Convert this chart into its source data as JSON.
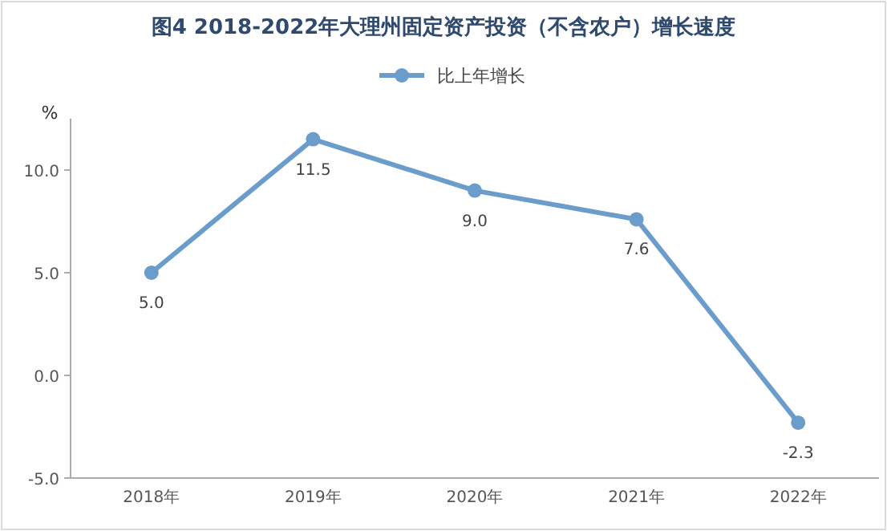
{
  "chart_data": {
    "type": "line",
    "title": "图4 2018-2022年大理州固定资产投资（不含农户）增长速度",
    "ylabel": "%",
    "categories": [
      "2018年",
      "2019年",
      "2020年",
      "2021年",
      "2022年"
    ],
    "series": [
      {
        "name": "比上年增长",
        "color": "#6a9ccc",
        "values": [
          5.0,
          11.5,
          9.0,
          7.6,
          -2.3
        ],
        "value_labels": [
          "5.0",
          "11.5",
          "9.0",
          "7.6",
          "-2.3"
        ]
      }
    ],
    "ylim": [
      -5,
      12.5
    ],
    "yticks": [
      {
        "value": -5,
        "label": "-5.0"
      },
      {
        "value": 0,
        "label": "0.0"
      },
      {
        "value": 5,
        "label": "5.0"
      },
      {
        "value": 10,
        "label": "10.0"
      }
    ],
    "legend": "top",
    "marker": "circle",
    "line_style": "solid",
    "grid": false
  }
}
